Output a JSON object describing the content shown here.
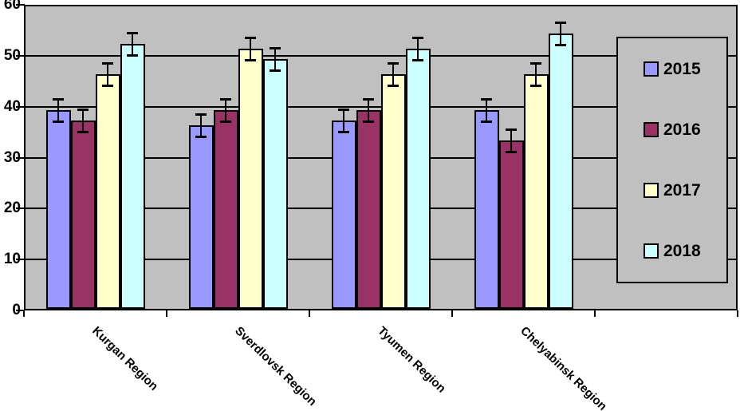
{
  "chart_data": {
    "type": "bar",
    "title": "",
    "xlabel": "",
    "ylabel": "",
    "categories": [
      "Kurgan Region",
      "Sverdlovsk Region",
      "Tyumen Region",
      "Chelyabinsk Region"
    ],
    "series": [
      {
        "name": "2015",
        "color": "#9999FF",
        "values": [
          39,
          36,
          37,
          39
        ],
        "errors": [
          2.2,
          2.2,
          2.2,
          2.2
        ]
      },
      {
        "name": "2016",
        "color": "#993366",
        "values": [
          37,
          39,
          39,
          33
        ],
        "errors": [
          2.2,
          2.2,
          2.2,
          2.2
        ]
      },
      {
        "name": "2017",
        "color": "#FFFFCC",
        "values": [
          46,
          51,
          46,
          46
        ],
        "errors": [
          2.2,
          2.2,
          2.2,
          2.2
        ]
      },
      {
        "name": "2018",
        "color": "#CCFFFF",
        "values": [
          52,
          49,
          51,
          54
        ],
        "errors": [
          2.2,
          2.2,
          2.2,
          2.2
        ]
      }
    ],
    "ylim": [
      0,
      60
    ],
    "yticks": [
      0,
      10,
      20,
      30,
      40,
      50,
      60
    ],
    "grid": true,
    "error_bars": true,
    "legend_position": "inside-right",
    "colors": {
      "plot_background": "#C0C0C0",
      "page_background": "#FFFFFF",
      "axis": "#000000",
      "bar_border": "#000000",
      "gridline": "#000000"
    }
  }
}
